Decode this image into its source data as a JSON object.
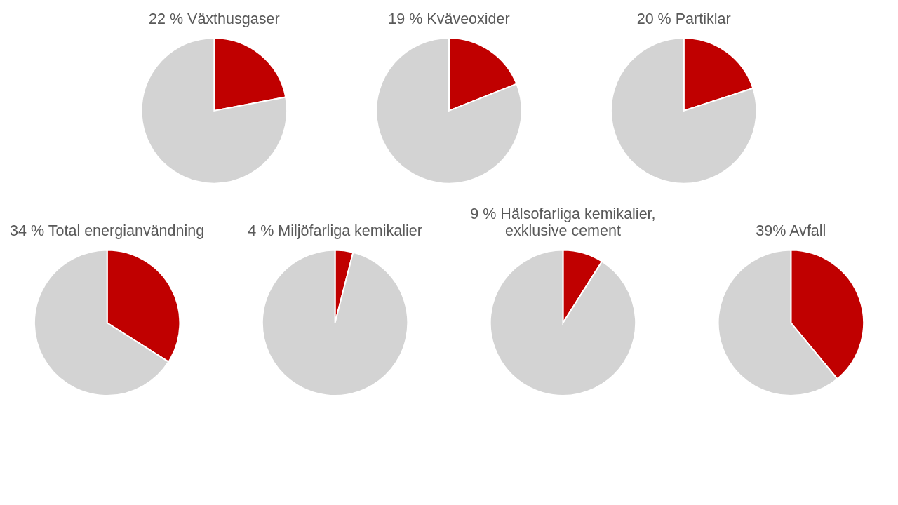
{
  "chart_data": [
    {
      "type": "pie",
      "title": "22 % Växthusgaser",
      "categories": [
        null,
        null
      ],
      "values": [
        22,
        78
      ],
      "colors": [
        "#c00000",
        "#d3d3d3"
      ]
    },
    {
      "type": "pie",
      "title": "19 % Kväveoxider",
      "categories": [
        null,
        null
      ],
      "values": [
        19,
        81
      ],
      "colors": [
        "#c00000",
        "#d3d3d3"
      ]
    },
    {
      "type": "pie",
      "title": "20 % Partiklar",
      "categories": [
        null,
        null
      ],
      "values": [
        20,
        80
      ],
      "colors": [
        "#c00000",
        "#d3d3d3"
      ]
    },
    {
      "type": "pie",
      "title": "34 % Total energianvändning",
      "categories": [
        null,
        null
      ],
      "values": [
        34,
        66
      ],
      "colors": [
        "#c00000",
        "#d3d3d3"
      ]
    },
    {
      "type": "pie",
      "title": "4 % Miljöfarliga kemikalier",
      "categories": [
        null,
        null
      ],
      "values": [
        4,
        96
      ],
      "colors": [
        "#c00000",
        "#d3d3d3"
      ]
    },
    {
      "type": "pie",
      "title": "9 % Hälsofarliga kemikalier,\nexklusive cement",
      "categories": [
        null,
        null
      ],
      "values": [
        9,
        91
      ],
      "colors": [
        "#c00000",
        "#d3d3d3"
      ]
    },
    {
      "type": "pie",
      "title": "39% Avfall",
      "categories": [
        null,
        null
      ],
      "values": [
        39,
        61
      ],
      "colors": [
        "#c00000",
        "#d3d3d3"
      ]
    }
  ]
}
